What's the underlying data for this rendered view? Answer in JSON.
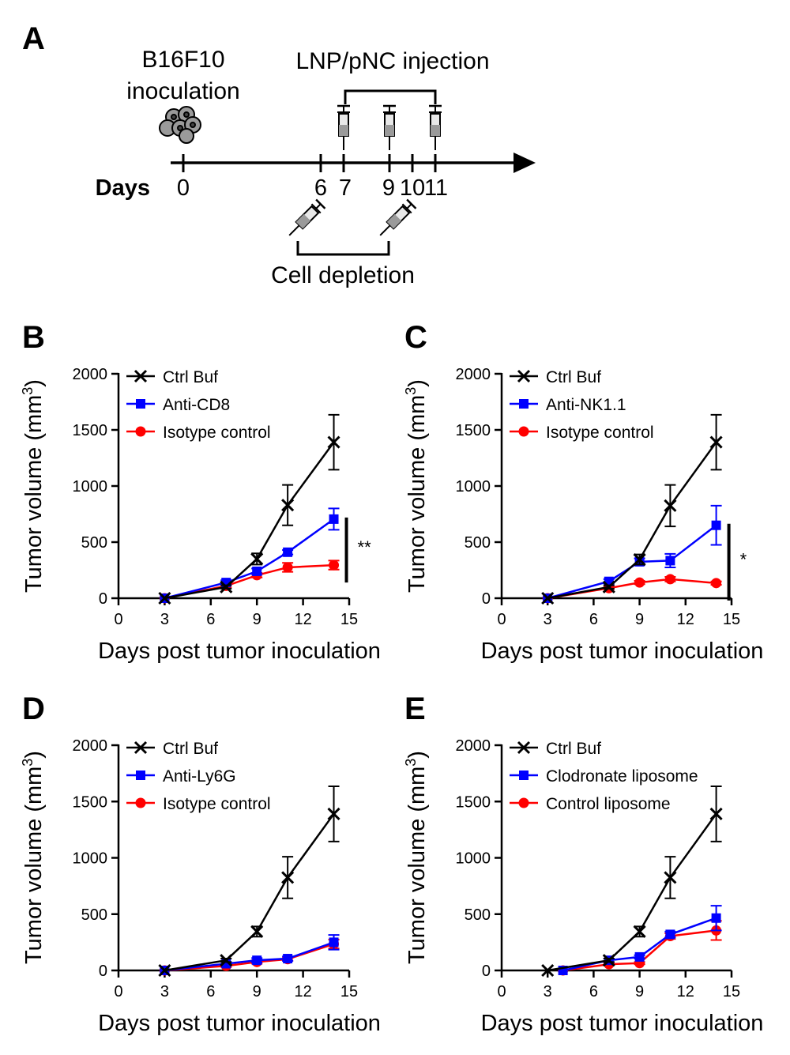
{
  "panel_a": {
    "letter": "A",
    "inoculation_label": [
      "B16F10",
      "inoculation"
    ],
    "injection_label": "LNP/pNC injection",
    "depletion_label": "Cell depletion",
    "axis_label": "Days",
    "day_labels": [
      "0",
      "6",
      "7",
      "9",
      "10",
      "11"
    ],
    "injection_days": [
      7,
      9,
      11
    ],
    "depletion_days": [
      6,
      10
    ],
    "colors": {
      "line": "#000000",
      "cell": "#9a9a9a"
    },
    "icons": [
      "cell-cluster-icon",
      "syringe-icon"
    ]
  },
  "colors": {
    "ctrl": "#000000",
    "treat": "#0000ff",
    "control": "#ff0000"
  },
  "chart_data": [
    {
      "letter": "B",
      "type": "line",
      "xlabel": "Days post tumor inoculation",
      "ylabel": "Tumor volume (mm",
      "ylabel_sup": "3",
      "ylabel_end": ")",
      "xlim": [
        0,
        15
      ],
      "ylim": [
        0,
        2000
      ],
      "xticks": [
        0,
        3,
        6,
        9,
        12,
        15
      ],
      "yticks": [
        0,
        500,
        1000,
        1500,
        2000
      ],
      "grid": false,
      "legend_position": "top-left",
      "significance": "**",
      "series": [
        {
          "name": "Ctrl Buf",
          "marker": "x",
          "color": "#000000",
          "x": [
            3,
            7,
            9,
            11,
            14
          ],
          "y": [
            0,
            100,
            350,
            830,
            1390
          ],
          "err": [
            0,
            15,
            50,
            180,
            245
          ]
        },
        {
          "name": "Anti-CD8",
          "marker": "square",
          "color": "#0000ff",
          "x": [
            3,
            7,
            9,
            11,
            14
          ],
          "y": [
            0,
            140,
            240,
            410,
            705
          ],
          "err": [
            0,
            20,
            25,
            20,
            95
          ]
        },
        {
          "name": "Isotype control",
          "marker": "circle",
          "color": "#ff0000",
          "x": [
            3,
            7,
            9,
            11,
            14
          ],
          "y": [
            0,
            110,
            205,
            275,
            295
          ],
          "err": [
            0,
            15,
            20,
            40,
            40
          ]
        }
      ]
    },
    {
      "letter": "C",
      "type": "line",
      "xlabel": "Days post tumor inoculation",
      "ylabel": "Tumor volume (mm",
      "ylabel_sup": "3",
      "ylabel_end": ")",
      "xlim": [
        0,
        15
      ],
      "ylim": [
        0,
        2000
      ],
      "xticks": [
        0,
        3,
        6,
        9,
        12,
        15
      ],
      "yticks": [
        0,
        500,
        1000,
        1500,
        2000
      ],
      "grid": false,
      "legend_position": "top-left",
      "significance": "*",
      "series": [
        {
          "name": "Ctrl Buf",
          "marker": "x",
          "color": "#000000",
          "x": [
            3,
            7,
            9,
            11,
            14
          ],
          "y": [
            0,
            100,
            345,
            825,
            1390
          ],
          "err": [
            0,
            15,
            45,
            185,
            245
          ]
        },
        {
          "name": "Anti-NK1.1",
          "marker": "square",
          "color": "#0000ff",
          "x": [
            3,
            7,
            9,
            11,
            14
          ],
          "y": [
            0,
            150,
            325,
            335,
            650
          ],
          "err": [
            0,
            20,
            30,
            60,
            175
          ]
        },
        {
          "name": "Isotype control",
          "marker": "circle",
          "color": "#ff0000",
          "x": [
            3,
            7,
            9,
            11,
            14
          ],
          "y": [
            0,
            90,
            140,
            170,
            135
          ],
          "err": [
            0,
            10,
            15,
            20,
            15
          ]
        }
      ]
    },
    {
      "letter": "D",
      "type": "line",
      "xlabel": "Days post tumor inoculation",
      "ylabel": "Tumor volume (mm",
      "ylabel_sup": "3",
      "ylabel_end": ")",
      "xlim": [
        0,
        15
      ],
      "ylim": [
        0,
        2000
      ],
      "xticks": [
        0,
        3,
        6,
        9,
        12,
        15
      ],
      "yticks": [
        0,
        500,
        1000,
        1500,
        2000
      ],
      "grid": false,
      "legend_position": "top-left",
      "significance": "",
      "series": [
        {
          "name": "Ctrl Buf",
          "marker": "x",
          "color": "#000000",
          "x": [
            3,
            7,
            9,
            11,
            14
          ],
          "y": [
            0,
            90,
            345,
            825,
            1390
          ],
          "err": [
            0,
            15,
            45,
            185,
            245
          ]
        },
        {
          "name": "Anti-Ly6G",
          "marker": "square",
          "color": "#0000ff",
          "x": [
            3,
            7,
            9,
            11,
            14
          ],
          "y": [
            0,
            60,
            90,
            105,
            250
          ],
          "err": [
            0,
            15,
            20,
            20,
            65
          ]
        },
        {
          "name": "Isotype control",
          "marker": "circle",
          "color": "#ff0000",
          "x": [
            3,
            7,
            9,
            11,
            14
          ],
          "y": [
            0,
            40,
            75,
            100,
            235
          ],
          "err": [
            0,
            10,
            15,
            15,
            40
          ]
        }
      ]
    },
    {
      "letter": "E",
      "type": "line",
      "xlabel": "Days post tumor inoculation",
      "ylabel": "Tumor volume (mm",
      "ylabel_sup": "3",
      "ylabel_end": ")",
      "xlim": [
        0,
        15
      ],
      "ylim": [
        0,
        2000
      ],
      "xticks": [
        0,
        3,
        6,
        9,
        12,
        15
      ],
      "yticks": [
        0,
        500,
        1000,
        1500,
        2000
      ],
      "grid": false,
      "legend_position": "top-left",
      "significance": "",
      "series": [
        {
          "name": "Ctrl Buf",
          "marker": "x",
          "color": "#000000",
          "x": [
            3,
            7,
            9,
            11,
            14
          ],
          "y": [
            0,
            90,
            345,
            825,
            1390
          ],
          "err": [
            0,
            15,
            45,
            185,
            245
          ]
        },
        {
          "name": "Clodronate liposome",
          "marker": "square",
          "color": "#0000ff",
          "x": [
            4,
            7,
            9,
            11,
            14
          ],
          "y": [
            0,
            90,
            120,
            320,
            465
          ],
          "err": [
            0,
            15,
            15,
            25,
            110
          ]
        },
        {
          "name": "Control liposome",
          "marker": "circle",
          "color": "#ff0000",
          "x": [
            4,
            7,
            9,
            11,
            14
          ],
          "y": [
            0,
            55,
            65,
            305,
            355
          ],
          "err": [
            0,
            10,
            10,
            25,
            85
          ]
        }
      ]
    }
  ]
}
